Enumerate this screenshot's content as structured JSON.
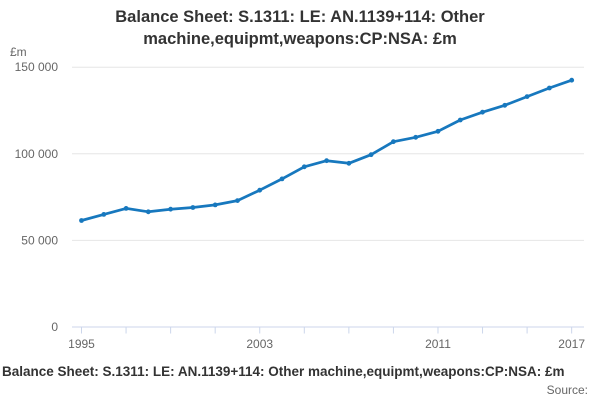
{
  "title": {
    "line1": "Balance Sheet: S.1311: LE: AN.1139+114: Other",
    "line2": "machine,equipmt,weapons:CP:NSA: £m"
  },
  "footer": {
    "caption": "Balance Sheet: S.1311: LE: AN.1139+114: Other machine,equipmt,weapons:CP:NSA: £m",
    "source_label": "Source:"
  },
  "colors": {
    "line": "#1778be",
    "grid": "#e6e6e6",
    "axis": "#ccd6eb",
    "tick_label": "#666666",
    "title": "#333333",
    "background": "#ffffff"
  },
  "chart_data": {
    "type": "line",
    "title": "Balance Sheet: S.1311: LE: AN.1139+114: Other machine,equipmt,weapons:CP:NSA: £m",
    "ylabel": "£m",
    "xlabel": "",
    "x": [
      1995,
      1996,
      1997,
      1998,
      1999,
      2000,
      2001,
      2002,
      2003,
      2004,
      2005,
      2006,
      2007,
      2008,
      2009,
      2010,
      2011,
      2012,
      2013,
      2014,
      2015,
      2016,
      2017
    ],
    "values": [
      61500,
      65000,
      68500,
      66500,
      68000,
      69000,
      70500,
      73000,
      79000,
      85500,
      92500,
      96000,
      94500,
      99500,
      107000,
      109500,
      113000,
      119500,
      124000,
      128000,
      133000,
      138000,
      142500
    ],
    "ylim": [
      0,
      150000
    ],
    "y_ticks": [
      0,
      50000,
      100000,
      150000
    ],
    "y_tick_labels": [
      "0",
      "50 000",
      "100 000",
      "150 000"
    ],
    "x_labeled_ticks": [
      1995,
      2003,
      2011,
      2017
    ],
    "x_tick_labels": [
      "1995",
      "2003",
      "2011",
      "2017"
    ],
    "x_tick_step": 2,
    "grid": "horizontal",
    "legend": "none"
  }
}
